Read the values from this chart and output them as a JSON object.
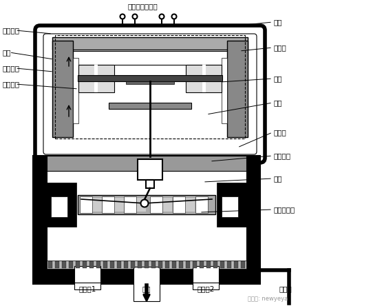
{
  "bg_color": "#ffffff",
  "labels": {
    "cong_gonglv": "从功率放大器来",
    "xianquan": "线圈",
    "shang_daociti": "上导磁体",
    "hengtiie": "衔铁",
    "xia_daociti": "下导磁体",
    "yongjiu_citiie": "永久磁铁",
    "tanhuang_guan": "弹簧管",
    "dangban": "挡板",
    "pengzui": "喷嘴",
    "fankui_gan": "反馈杆",
    "fankui_xiaoqiu": "反馈小球",
    "huafa": "滑阀",
    "guding_jiezukong": "固定节流孔",
    "kongzhi_kou1": "控制口1",
    "huiyou": "回油",
    "kongzhi_kou2": "控制口2",
    "yali_you": "压力油"
  },
  "font_size": 7.5,
  "watermark": "微信号: newyeya"
}
